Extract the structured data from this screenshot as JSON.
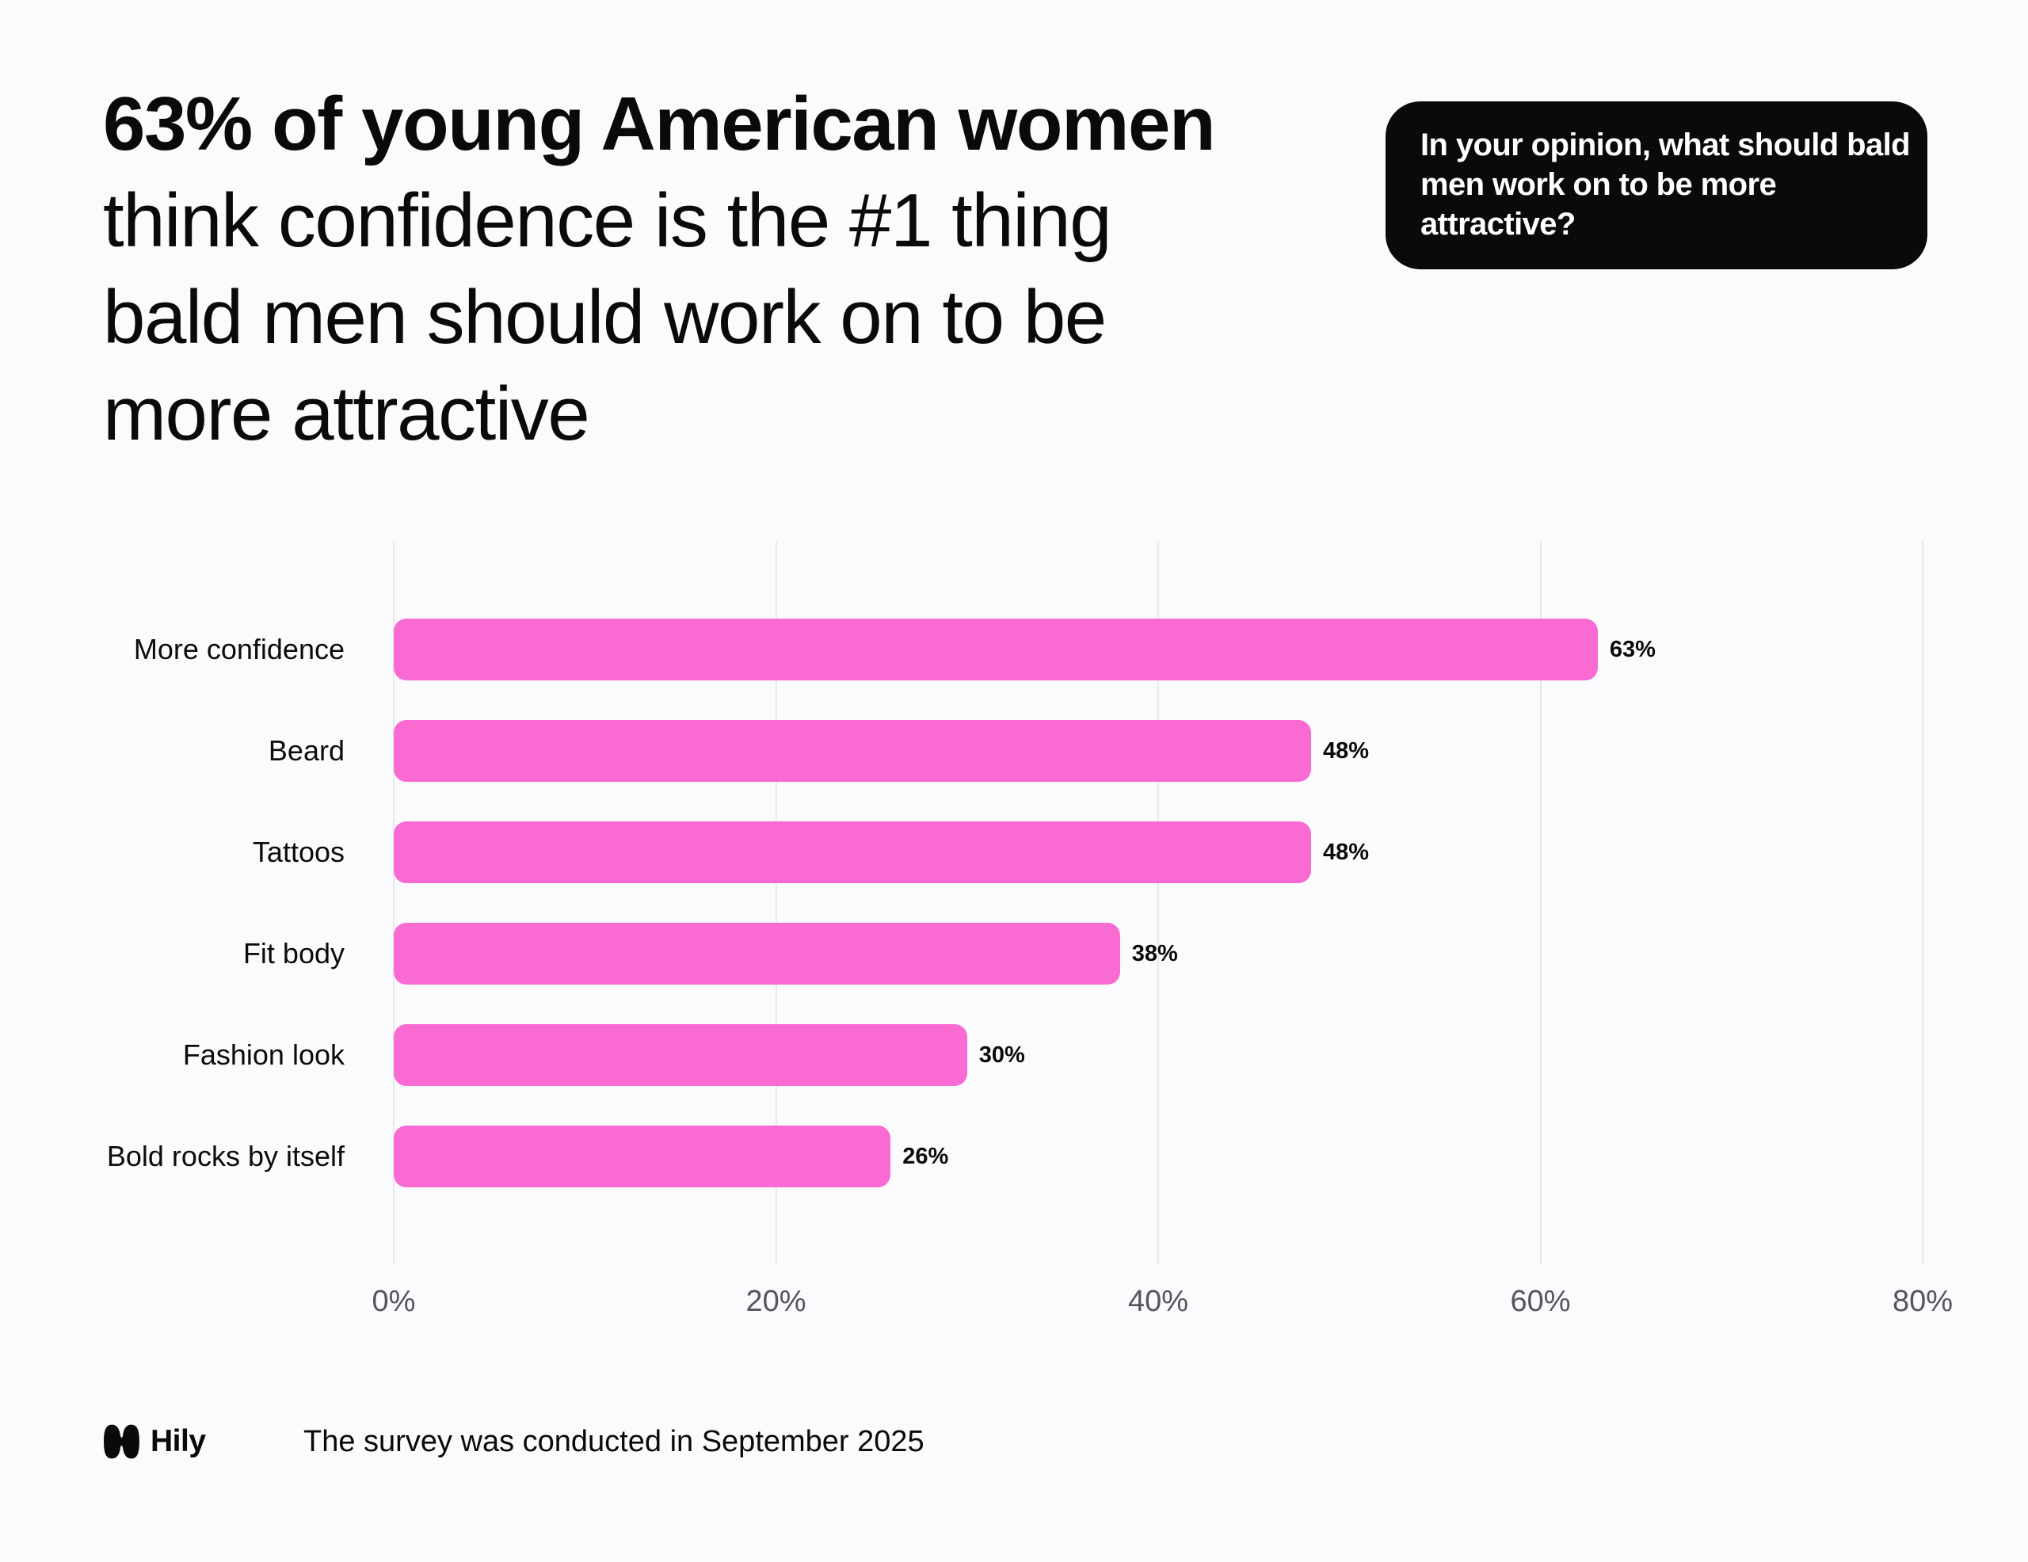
{
  "title": {
    "line1": "63% of young American women",
    "line2": "think confidence is the #1 thing",
    "line3": "bald men should work on to be",
    "line4": "more attractive"
  },
  "question_bubble": {
    "lines": [
      "In your opinion, what should bald",
      "men work on to be more",
      "attractive?"
    ]
  },
  "chart_data": {
    "type": "bar",
    "orientation": "horizontal",
    "categories": [
      "More confidence",
      "Beard",
      "Tattoos",
      "Fit body",
      "Fashion look",
      "Bold rocks by itself"
    ],
    "values": [
      63,
      48,
      48,
      38,
      30,
      26
    ],
    "value_labels": [
      "63%",
      "48%",
      "48%",
      "38%",
      "30%",
      "26%"
    ],
    "x_ticks": [
      "0%",
      "20%",
      "40%",
      "60%",
      "80%"
    ],
    "xlim": [
      0,
      80
    ],
    "grid": true,
    "legend": false,
    "bar_color": "#FA6AD3",
    "gridline_color": "#E9E9ED",
    "tick_color": "#55555C"
  },
  "footer": {
    "brand": "Hily",
    "note": "The survey was conducted in September 2025"
  },
  "colors": {
    "background": "#FBFBFD",
    "bubble_background": "#0A0A0B",
    "bubble_text": "#FFFFFF",
    "text": "#0A0A0B"
  }
}
